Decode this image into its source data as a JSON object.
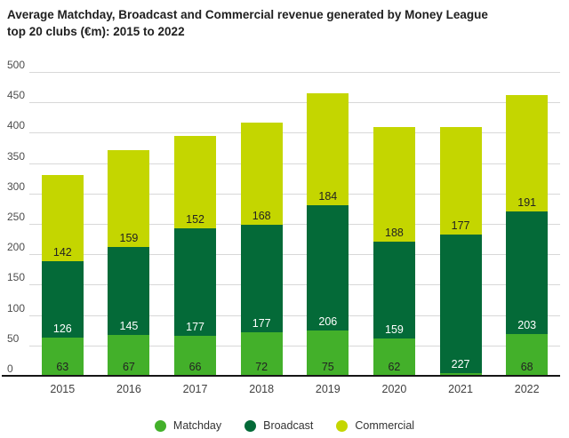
{
  "title": {
    "line1": "Average Matchday, Broadcast and Commercial revenue generated by Money League",
    "line2": "top 20 clubs (€m): 2015 to 2022"
  },
  "chart_data": {
    "type": "bar",
    "stacked": true,
    "title": "Average Matchday, Broadcast and Commercial revenue generated by Money League top 20 clubs (€m): 2015 to 2022",
    "categories": [
      "2015",
      "2016",
      "2017",
      "2018",
      "2019",
      "2020",
      "2021",
      "2022"
    ],
    "series": [
      {
        "name": "Matchday",
        "color": "#43B02A",
        "label_color": "#222222",
        "values": [
          63,
          67,
          66,
          72,
          75,
          62,
          5,
          68
        ],
        "labels": [
          "63",
          "67",
          "66",
          "72",
          "75",
          "62",
          "",
          "68"
        ]
      },
      {
        "name": "Broadcast",
        "color": "#046A38",
        "label_color": "#ffffff",
        "values": [
          126,
          145,
          177,
          177,
          206,
          159,
          227,
          203
        ],
        "labels": [
          "126",
          "145",
          "177",
          "177",
          "206",
          "159",
          "227",
          "203"
        ]
      },
      {
        "name": "Commercial",
        "color": "#C4D600",
        "label_color": "#222222",
        "values": [
          142,
          159,
          152,
          168,
          184,
          188,
          177,
          191
        ],
        "labels": [
          "142",
          "159",
          "152",
          "168",
          "184",
          "188",
          "177",
          "191"
        ]
      }
    ],
    "ylim": [
      0,
      500
    ],
    "ytick_step": 50,
    "yticks": [
      "0",
      "50",
      "100",
      "150",
      "200",
      "250",
      "300",
      "350",
      "400",
      "450",
      "500"
    ],
    "grid": true,
    "legend_position": "bottom-center",
    "legend": [
      {
        "label": "Matchday",
        "color": "#43B02A"
      },
      {
        "label": "Broadcast",
        "color": "#046A38"
      },
      {
        "label": "Commercial",
        "color": "#C4D600"
      }
    ]
  }
}
